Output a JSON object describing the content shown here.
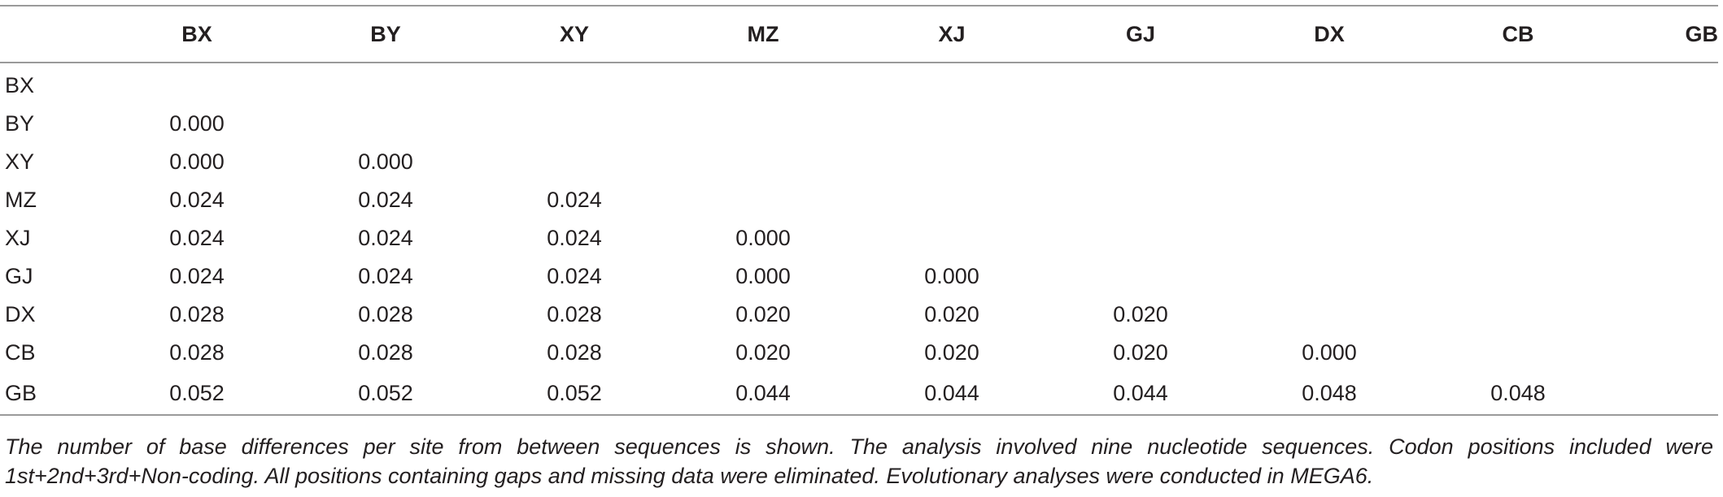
{
  "table": {
    "corner_label": "",
    "columns": [
      "BX",
      "BY",
      "XY",
      "MZ",
      "XJ",
      "GJ",
      "DX",
      "CB",
      "GB"
    ],
    "rows": [
      {
        "label": "BX",
        "values": [
          "",
          "",
          "",
          "",
          "",
          "",
          "",
          "",
          ""
        ]
      },
      {
        "label": "BY",
        "values": [
          "0.000",
          "",
          "",
          "",
          "",
          "",
          "",
          "",
          ""
        ]
      },
      {
        "label": "XY",
        "values": [
          "0.000",
          "0.000",
          "",
          "",
          "",
          "",
          "",
          "",
          ""
        ]
      },
      {
        "label": "MZ",
        "values": [
          "0.024",
          "0.024",
          "0.024",
          "",
          "",
          "",
          "",
          "",
          ""
        ]
      },
      {
        "label": "XJ",
        "values": [
          "0.024",
          "0.024",
          "0.024",
          "0.000",
          "",
          "",
          "",
          "",
          ""
        ]
      },
      {
        "label": "GJ",
        "values": [
          "0.024",
          "0.024",
          "0.024",
          "0.000",
          "0.000",
          "",
          "",
          "",
          ""
        ]
      },
      {
        "label": "DX",
        "values": [
          "0.028",
          "0.028",
          "0.028",
          "0.020",
          "0.020",
          "0.020",
          "",
          "",
          ""
        ]
      },
      {
        "label": "CB",
        "values": [
          "0.028",
          "0.028",
          "0.028",
          "0.020",
          "0.020",
          "0.020",
          "0.000",
          "",
          ""
        ]
      },
      {
        "label": "GB",
        "values": [
          "0.052",
          "0.052",
          "0.052",
          "0.044",
          "0.044",
          "0.044",
          "0.048",
          "0.048",
          ""
        ]
      }
    ]
  },
  "footnote": "The number of base differences per site from between sequences is shown. The analysis involved nine nucleotide sequences. Codon positions included were 1st+2nd+3rd+Non-coding. All positions containing gaps and missing data were eliminated. Evolutionary analyses were conducted in MEGA6."
}
